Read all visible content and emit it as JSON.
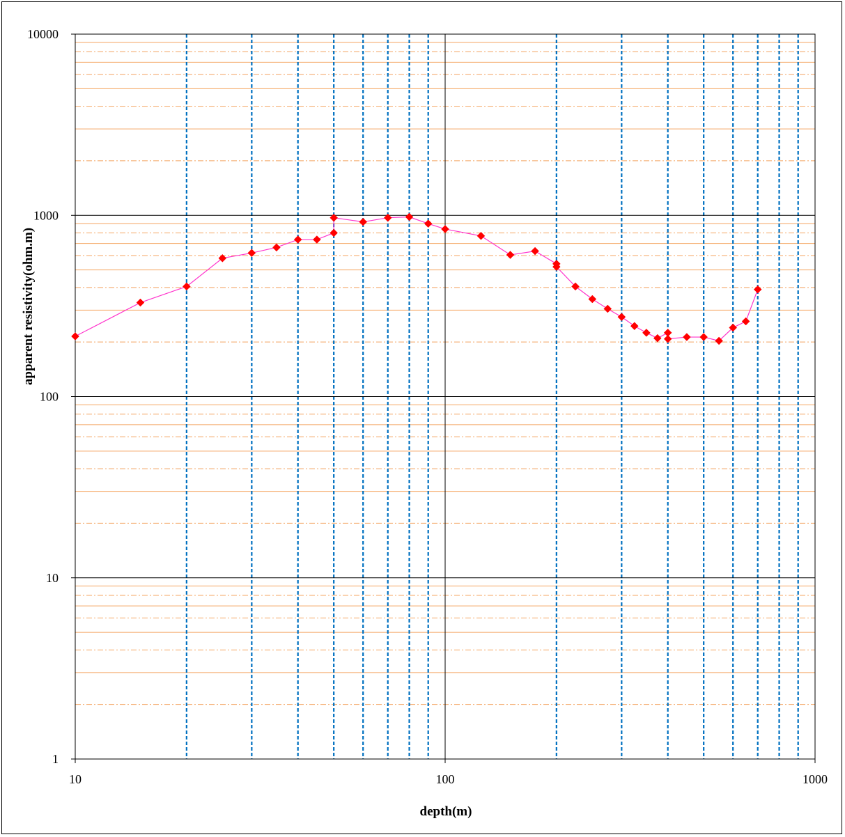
{
  "chart_data": {
    "type": "scatter",
    "xscale": "log",
    "yscale": "log",
    "xlim": [
      10,
      1000
    ],
    "ylim": [
      1,
      10000
    ],
    "xlabel": "depth(m)",
    "ylabel": "apparent resistivity(ohm.m)",
    "x_tick_labels": [
      "10",
      "100",
      "1000"
    ],
    "y_tick_labels": [
      "1",
      "10",
      "100",
      "1000",
      "10000"
    ],
    "grid": true,
    "minor_vertical_gridlines_x": [
      20,
      30,
      40,
      50,
      60,
      70,
      80,
      90,
      200,
      300,
      400,
      500,
      600,
      700,
      800,
      900
    ],
    "colors": {
      "series_line": "#ff33cc",
      "marker": "#ff0000",
      "major_grid": "#000000",
      "minor_vertical_grid": "#0070c0",
      "minor_horizontal_grid": "#f4a460"
    },
    "series": [
      {
        "marker": "diamond",
        "x": [
          10,
          15,
          20,
          25,
          30,
          35,
          40,
          45,
          50,
          50,
          60,
          70,
          80,
          90,
          100,
          125,
          150,
          175,
          200,
          200,
          225,
          250,
          275,
          300,
          325,
          350,
          375,
          400,
          400,
          450,
          500,
          550,
          600,
          650,
          700
        ],
        "y": [
          215,
          330,
          405,
          580,
          620,
          665,
          735,
          735,
          800,
          970,
          920,
          970,
          980,
          900,
          840,
          770,
          605,
          635,
          540,
          520,
          405,
          345,
          305,
          275,
          245,
          225,
          210,
          225,
          208,
          213,
          213,
          203,
          240,
          260,
          390
        ]
      }
    ]
  }
}
